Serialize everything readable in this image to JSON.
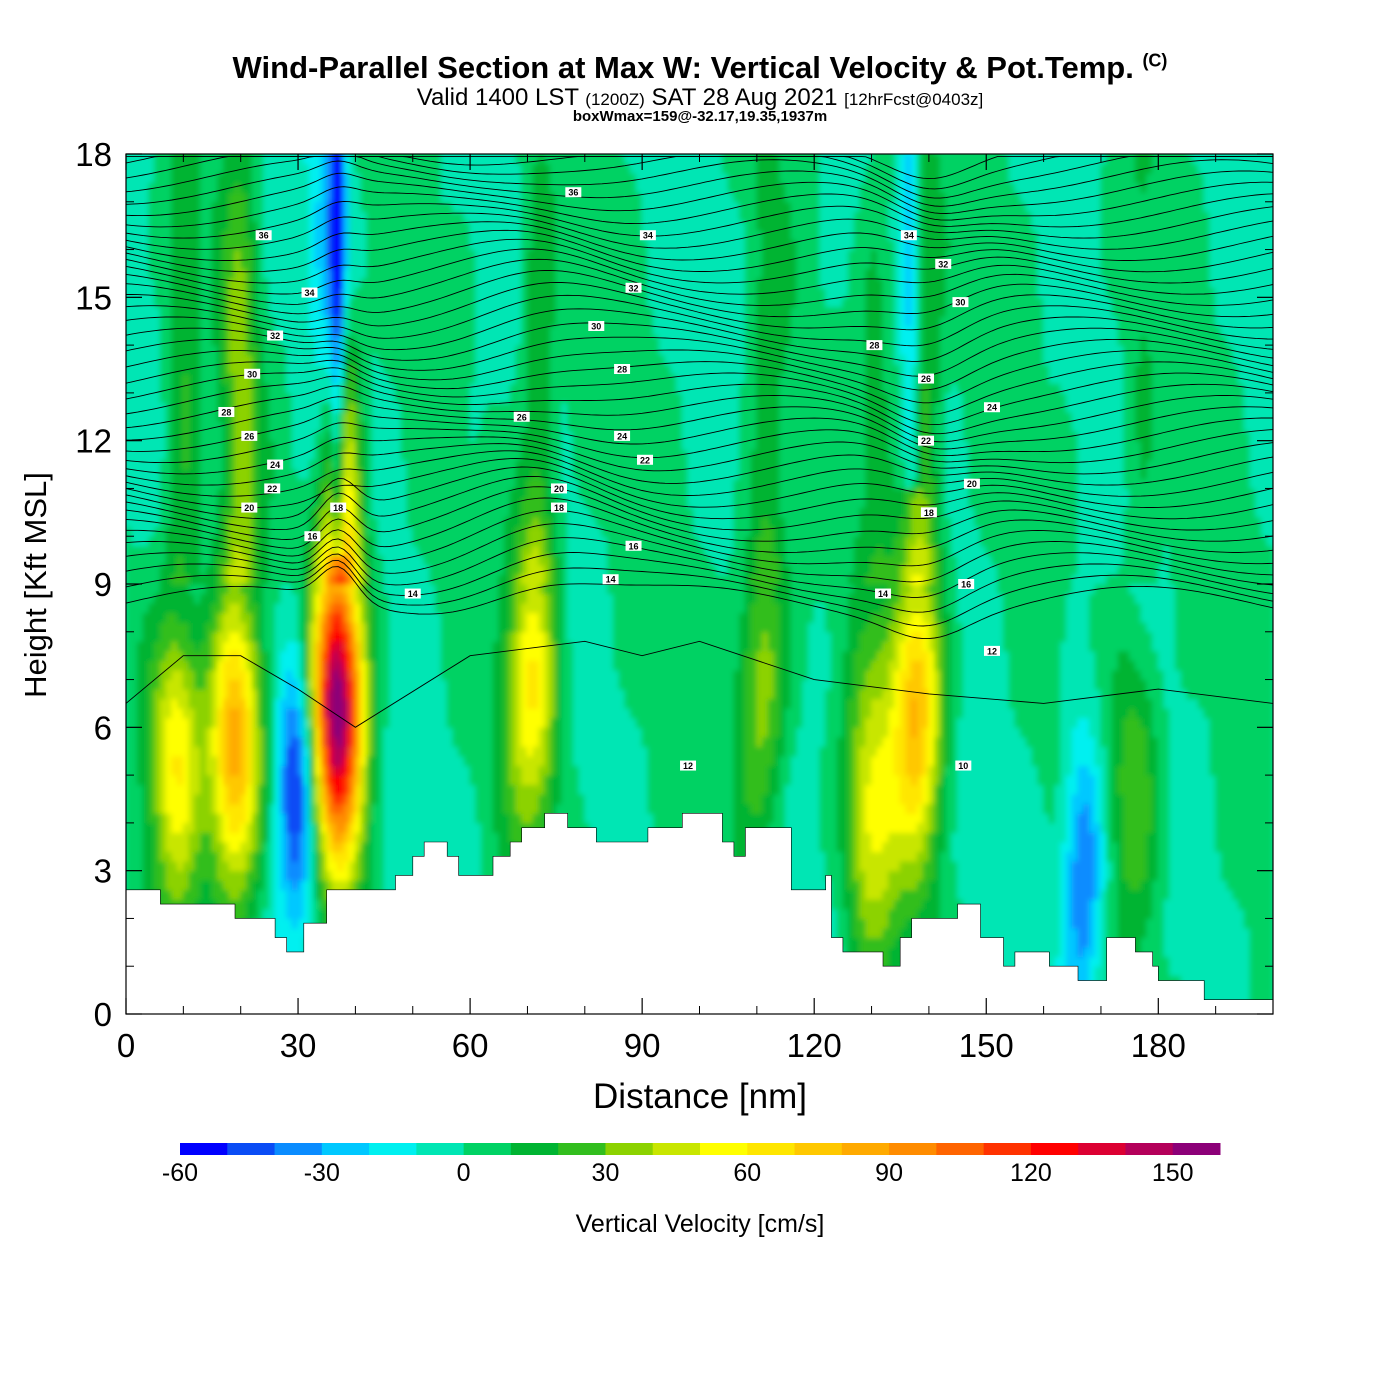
{
  "title": {
    "main": "Wind-Parallel Section at Max W: Vertical Velocity & Pot.Temp.",
    "copyright": "(C)",
    "valid_prefix": "Valid 1400 LST",
    "valid_utc": "(1200Z)",
    "valid_date": "SAT 28 Aug 2021",
    "forecast": "[12hrFcst@0403z]",
    "box_info": "boxWmax=159@-32.17,19.35,1937m"
  },
  "chart_data": {
    "type": "heatmap",
    "xlabel": "Distance [nm]",
    "ylabel": "Height [Kft MSL]",
    "xlim": [
      0,
      200
    ],
    "ylim": [
      0,
      18
    ],
    "x_ticks": [
      "0",
      "30",
      "60",
      "90",
      "120",
      "150",
      "180"
    ],
    "y_ticks": [
      "0",
      "3",
      "6",
      "9",
      "12",
      "15",
      "18"
    ],
    "colorbar": {
      "label": "Vertical Velocity [cm/s]",
      "tick_labels": [
        "-60",
        "-30",
        "0",
        "30",
        "60",
        "90",
        "120",
        "150"
      ],
      "levels": [
        -60,
        -50,
        -40,
        -30,
        -20,
        -10,
        0,
        10,
        20,
        30,
        40,
        50,
        60,
        70,
        80,
        90,
        100,
        110,
        120,
        130,
        140,
        150,
        160
      ],
      "colors": [
        "#0000ff",
        "#0a4cf5",
        "#0a8cff",
        "#00c8ff",
        "#00f0f0",
        "#00e6b4",
        "#00d264",
        "#00b432",
        "#32be1e",
        "#8cd200",
        "#c8e600",
        "#ffff00",
        "#ffe600",
        "#ffc800",
        "#ffaa00",
        "#ff8c00",
        "#ff6400",
        "#ff3200",
        "#ff0000",
        "#dc0032",
        "#b4005a",
        "#8c0078"
      ]
    },
    "updrafts": [
      {
        "x": 9,
        "y": 5.5,
        "w_cm_s": 60
      },
      {
        "x": 19,
        "y": 5.5,
        "w_cm_s": 90
      },
      {
        "x": 37,
        "y": 6.5,
        "w_cm_s": 159
      },
      {
        "x": 71,
        "y": 7.0,
        "w_cm_s": 60
      },
      {
        "x": 111,
        "y": 7.0,
        "w_cm_s": 40
      },
      {
        "x": 130,
        "y": 4.0,
        "w_cm_s": 50
      },
      {
        "x": 138,
        "y": 6.5,
        "w_cm_s": 80
      },
      {
        "x": 176,
        "y": 5.0,
        "w_cm_s": 30
      }
    ],
    "downdrafts": [
      {
        "x": 30,
        "y": 5.0,
        "w_cm_s": -60
      },
      {
        "x": 37,
        "y": 16.0,
        "w_cm_s": -55
      },
      {
        "x": 167,
        "y": 3.0,
        "w_cm_s": -45
      }
    ],
    "theta_contour_labels": [
      {
        "text": "36",
        "x": 24,
        "y": 16.3
      },
      {
        "text": "34",
        "x": 32,
        "y": 15.1
      },
      {
        "text": "32",
        "x": 26,
        "y": 14.2
      },
      {
        "text": "30",
        "x": 22,
        "y": 13.4
      },
      {
        "text": "28",
        "x": 17.5,
        "y": 12.6
      },
      {
        "text": "26",
        "x": 21.5,
        "y": 12.1
      },
      {
        "text": "24",
        "x": 26,
        "y": 11.5
      },
      {
        "text": "22",
        "x": 25.5,
        "y": 11.0
      },
      {
        "text": "20",
        "x": 21.5,
        "y": 10.6
      },
      {
        "text": "18",
        "x": 37,
        "y": 10.6
      },
      {
        "text": "16",
        "x": 32.5,
        "y": 10.0
      },
      {
        "text": "14",
        "x": 50,
        "y": 8.8
      },
      {
        "text": "36",
        "x": 78,
        "y": 17.2
      },
      {
        "text": "34",
        "x": 91,
        "y": 16.3
      },
      {
        "text": "32",
        "x": 88.5,
        "y": 15.2
      },
      {
        "text": "30",
        "x": 82,
        "y": 14.4
      },
      {
        "text": "28",
        "x": 86.5,
        "y": 13.5
      },
      {
        "text": "26",
        "x": 69,
        "y": 12.5
      },
      {
        "text": "24",
        "x": 86.5,
        "y": 12.1
      },
      {
        "text": "22",
        "x": 90.5,
        "y": 11.6
      },
      {
        "text": "20",
        "x": 75.5,
        "y": 11.0
      },
      {
        "text": "18",
        "x": 75.5,
        "y": 10.6
      },
      {
        "text": "16",
        "x": 88.5,
        "y": 9.8
      },
      {
        "text": "14",
        "x": 84.5,
        "y": 9.1
      },
      {
        "text": "12",
        "x": 98,
        "y": 5.2
      },
      {
        "text": "34",
        "x": 136.5,
        "y": 16.3
      },
      {
        "text": "32",
        "x": 142.5,
        "y": 15.7
      },
      {
        "text": "30",
        "x": 145.5,
        "y": 14.9
      },
      {
        "text": "28",
        "x": 130.5,
        "y": 14.0
      },
      {
        "text": "26",
        "x": 139.5,
        "y": 13.3
      },
      {
        "text": "24",
        "x": 151,
        "y": 12.7
      },
      {
        "text": "22",
        "x": 139.5,
        "y": 12.0
      },
      {
        "text": "20",
        "x": 147.5,
        "y": 11.1
      },
      {
        "text": "18",
        "x": 140,
        "y": 10.5
      },
      {
        "text": "16",
        "x": 146.5,
        "y": 9.0
      },
      {
        "text": "14",
        "x": 132,
        "y": 8.8
      },
      {
        "text": "12",
        "x": 151,
        "y": 7.6
      },
      {
        "text": "10",
        "x": 146,
        "y": 5.2
      }
    ],
    "terrain_top_kft": [
      [
        0,
        2.6
      ],
      [
        6,
        2.3
      ],
      [
        19,
        2.0
      ],
      [
        26,
        1.6
      ],
      [
        28,
        1.3
      ],
      [
        31,
        1.9
      ],
      [
        35,
        2.6
      ],
      [
        47,
        2.9
      ],
      [
        50,
        3.3
      ],
      [
        52,
        3.6
      ],
      [
        56,
        3.3
      ],
      [
        58,
        2.9
      ],
      [
        64,
        3.3
      ],
      [
        67,
        3.6
      ],
      [
        69,
        3.9
      ],
      [
        73,
        4.2
      ],
      [
        77,
        3.9
      ],
      [
        82,
        3.6
      ],
      [
        91,
        3.9
      ],
      [
        97,
        4.2
      ],
      [
        104,
        3.6
      ],
      [
        106,
        3.3
      ],
      [
        108,
        3.9
      ],
      [
        116,
        2.6
      ],
      [
        122,
        2.9
      ],
      [
        123,
        1.6
      ],
      [
        125,
        1.3
      ],
      [
        132,
        1.0
      ],
      [
        135,
        1.6
      ],
      [
        137,
        2.0
      ],
      [
        145,
        2.3
      ],
      [
        149,
        1.6
      ],
      [
        153,
        1.0
      ],
      [
        155,
        1.3
      ],
      [
        161,
        1.0
      ],
      [
        166,
        0.7
      ],
      [
        171,
        1.6
      ],
      [
        176,
        1.3
      ],
      [
        179,
        1.0
      ],
      [
        180,
        0.7
      ],
      [
        188,
        0.3
      ],
      [
        200,
        0.3
      ]
    ]
  }
}
